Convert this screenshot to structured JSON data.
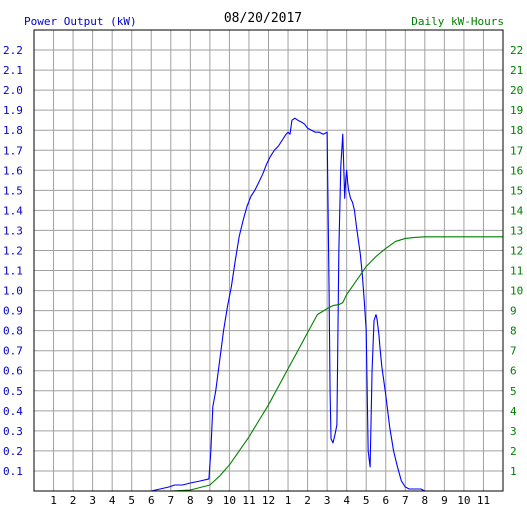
{
  "chart_data": {
    "type": "line",
    "title": "08/20/2017",
    "ylabel_left": "Power Output (kW)",
    "ylabel_right": "Daily kW-Hours",
    "colors": {
      "left_axis_text": "#0000cc",
      "right_axis_text": "#008000",
      "power_line": "#0000ff",
      "energy_line": "#008000",
      "grid": "#a0a0a0",
      "frame": "#000000"
    },
    "grid": true,
    "x_tick_labels": [
      "1",
      "2",
      "3",
      "4",
      "5",
      "6",
      "7",
      "8",
      "9",
      "10",
      "11",
      "12",
      "1",
      "2",
      "3",
      "4",
      "5",
      "6",
      "7",
      "8",
      "9",
      "10",
      "11"
    ],
    "x_ticks": [
      1,
      2,
      3,
      4,
      5,
      6,
      7,
      8,
      9,
      10,
      11,
      12,
      13,
      14,
      15,
      16,
      17,
      18,
      19,
      20,
      21,
      22,
      23
    ],
    "xlim": [
      0,
      24
    ],
    "ylim_left": [
      0,
      2.3
    ],
    "ylim_right": [
      0,
      23
    ],
    "left_tick_labels": [
      "0.1",
      "0.2",
      "0.3",
      "0.4",
      "0.5",
      "0.6",
      "0.7",
      "0.8",
      "0.9",
      "1.0",
      "1.1",
      "1.2",
      "1.3",
      "1.4",
      "1.5",
      "1.6",
      "1.7",
      "1.8",
      "1.9",
      "2.0",
      "2.1",
      "2.2"
    ],
    "right_tick_labels": [
      "1",
      "2",
      "3",
      "4",
      "5",
      "6",
      "7",
      "8",
      "9",
      "10",
      "11",
      "12",
      "13",
      "14",
      "15",
      "16",
      "17",
      "18",
      "19",
      "20",
      "21",
      "22"
    ],
    "series": [
      {
        "name": "Power Output (kW)",
        "axis": "left",
        "x": [
          6.0,
          6.9,
          7.2,
          7.6,
          8.0,
          8.5,
          8.95,
          9.05,
          9.15,
          9.3,
          9.5,
          9.7,
          9.9,
          10.1,
          10.3,
          10.5,
          10.7,
          10.9,
          11.1,
          11.3,
          11.5,
          11.7,
          11.9,
          12.1,
          12.3,
          12.5,
          12.7,
          12.9,
          13.0,
          13.1,
          13.2,
          13.35,
          13.5,
          13.7,
          13.85,
          14.0,
          14.2,
          14.4,
          14.6,
          14.8,
          15.0,
          15.1,
          15.15,
          15.2,
          15.25,
          15.3,
          15.4,
          15.5,
          15.6,
          15.7,
          15.8,
          15.85,
          15.9,
          15.95,
          16.0,
          16.05,
          16.1,
          16.2,
          16.3,
          16.4,
          16.5,
          16.6,
          16.7,
          16.8,
          16.9,
          17.0,
          17.1,
          17.2,
          17.3,
          17.4,
          17.5,
          17.55,
          17.6,
          17.65,
          17.7,
          17.8,
          17.9,
          18.0,
          18.1,
          18.2,
          18.3,
          18.4,
          18.6,
          18.8,
          19.0,
          19.2,
          19.4,
          19.6,
          19.8,
          20.0,
          20.2,
          20.5
        ],
        "values": [
          0.0,
          0.02,
          0.03,
          0.03,
          0.04,
          0.05,
          0.06,
          0.2,
          0.42,
          0.5,
          0.65,
          0.8,
          0.92,
          1.02,
          1.15,
          1.27,
          1.35,
          1.42,
          1.47,
          1.5,
          1.54,
          1.58,
          1.63,
          1.67,
          1.7,
          1.72,
          1.75,
          1.78,
          1.79,
          1.78,
          1.85,
          1.86,
          1.85,
          1.84,
          1.83,
          1.81,
          1.8,
          1.79,
          1.79,
          1.78,
          1.79,
          1.0,
          0.5,
          0.26,
          0.25,
          0.24,
          0.28,
          0.33,
          1.2,
          1.62,
          1.78,
          1.62,
          1.46,
          1.55,
          1.6,
          1.54,
          1.5,
          1.46,
          1.44,
          1.4,
          1.32,
          1.25,
          1.18,
          1.08,
          0.95,
          0.8,
          0.2,
          0.12,
          0.6,
          0.85,
          0.88,
          0.86,
          0.82,
          0.78,
          0.72,
          0.62,
          0.55,
          0.48,
          0.4,
          0.32,
          0.26,
          0.2,
          0.12,
          0.05,
          0.02,
          0.01,
          0.01,
          0.01,
          0.01,
          0.0,
          0.0,
          0.0
        ]
      },
      {
        "name": "Daily kW-Hours",
        "axis": "right",
        "x": [
          7.0,
          8.0,
          9.0,
          9.5,
          10.0,
          10.5,
          11.0,
          11.5,
          12.0,
          12.5,
          13.0,
          13.5,
          14.0,
          14.5,
          15.0,
          15.3,
          15.6,
          15.8,
          16.0,
          16.5,
          17.0,
          17.5,
          18.0,
          18.5,
          19.0,
          19.5,
          20.0,
          21.0,
          22.0,
          23.0,
          24.0
        ],
        "values": [
          0.0,
          0.05,
          0.3,
          0.75,
          1.3,
          2.0,
          2.7,
          3.5,
          4.3,
          5.2,
          6.1,
          7.0,
          7.9,
          8.8,
          9.1,
          9.25,
          9.3,
          9.4,
          9.8,
          10.5,
          11.2,
          11.7,
          12.1,
          12.45,
          12.6,
          12.65,
          12.68,
          12.68,
          12.68,
          12.68,
          12.68
        ]
      }
    ]
  }
}
